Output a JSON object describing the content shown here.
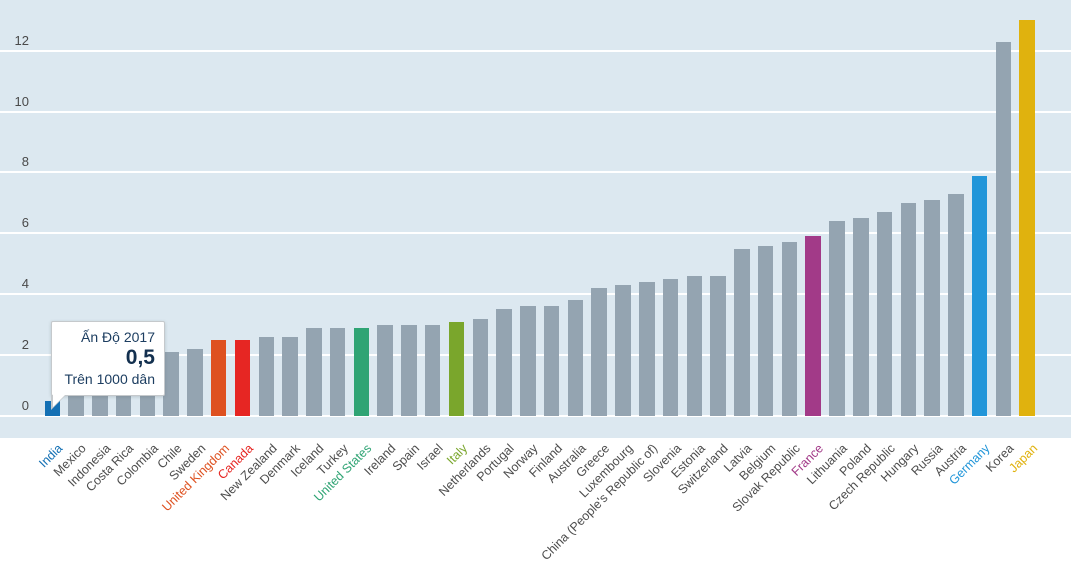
{
  "chart_data": {
    "type": "bar",
    "title": "",
    "unit_label": "Trên 1000 dân",
    "categories": [
      "India",
      "Mexico",
      "Indonesia",
      "Costa Rica",
      "Colombia",
      "Chile",
      "Sweden",
      "United Kingdom",
      "Canada",
      "New Zealand",
      "Denmark",
      "Iceland",
      "Turkey",
      "United States",
      "Ireland",
      "Spain",
      "Israel",
      "Italy",
      "Netherlands",
      "Portugal",
      "Norway",
      "Finland",
      "Australia",
      "Greece",
      "Luxembourg",
      "China (People's Republic of)",
      "Slovenia",
      "Estonia",
      "Switzerland",
      "Latvia",
      "Belgium",
      "Slovak Republic",
      "France",
      "Lithuania",
      "Poland",
      "Czech Republic",
      "Hungary",
      "Russia",
      "Austria",
      "Germany",
      "Korea",
      "Japan"
    ],
    "values": [
      0.5,
      0.7,
      0.7,
      0.7,
      0.7,
      2.1,
      2.2,
      2.5,
      2.5,
      2.6,
      2.6,
      2.9,
      2.9,
      2.9,
      3.0,
      3.0,
      3.0,
      3.1,
      3.2,
      3.5,
      3.6,
      3.6,
      3.8,
      4.2,
      4.3,
      4.4,
      4.5,
      4.6,
      4.6,
      5.5,
      5.6,
      5.7,
      5.9,
      6.4,
      6.5,
      6.7,
      7.0,
      7.1,
      7.3,
      7.9,
      12.3,
      13.0
    ],
    "highlight_colors": {
      "India": "#1470b4",
      "United Kingdom": "#de5120",
      "Canada": "#e62623",
      "United States": "#2fa474",
      "Italy": "#7aa62c",
      "France": "#a23a88",
      "Germany": "#2296d9",
      "Japan": "#e0b20e"
    },
    "default_bar_color": "#94a4b1",
    "plot_background_color": "#dce8f0",
    "gridline_color": "#ffffff",
    "y_ticks": [
      "0",
      "2",
      "4",
      "6",
      "8",
      "10",
      "12"
    ],
    "ylim": [
      0,
      13.7
    ],
    "grid": true,
    "legend": false,
    "xlabel": "",
    "ylabel": ""
  },
  "tooltip": {
    "title": "Ấn Độ 2017",
    "value": "0,5",
    "unit": "Trên 1000 dân",
    "target_country": "India"
  }
}
